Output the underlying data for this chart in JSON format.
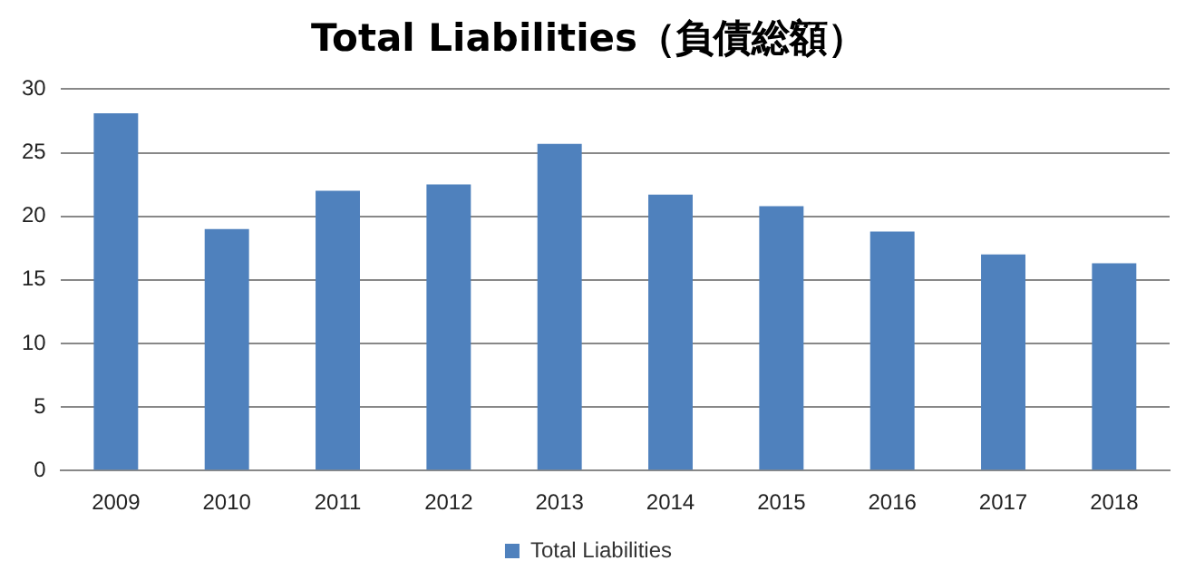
{
  "chart_data": {
    "type": "bar",
    "title": "Total Liabilities（負債総額）",
    "categories": [
      "2009",
      "2010",
      "2011",
      "2012",
      "2013",
      "2014",
      "2015",
      "2016",
      "2017",
      "2018"
    ],
    "series": [
      {
        "name": "Total Liabilities",
        "color": "#4f81bd",
        "values": [
          28.1,
          19.0,
          22.0,
          22.5,
          25.7,
          21.7,
          20.8,
          18.8,
          17.0,
          16.3
        ]
      }
    ],
    "ylim": [
      0,
      30
    ],
    "yticks": [
      0,
      5,
      10,
      15,
      20,
      25,
      30
    ],
    "grid": "y",
    "legend": "bottom"
  }
}
